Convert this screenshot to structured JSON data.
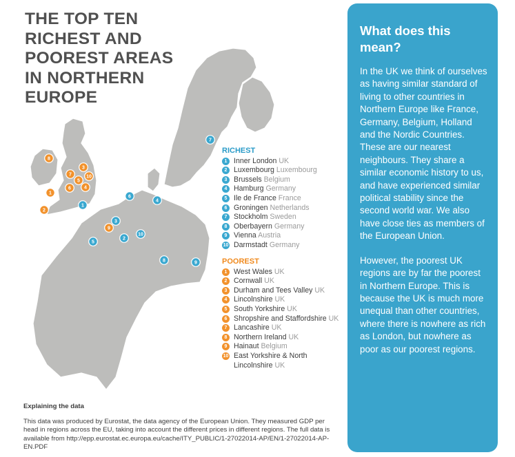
{
  "title": "THE TOP TEN RICHEST AND POOREST AREAS IN NORTHERN EUROPE",
  "legend": {
    "richest_heading": "RICHEST",
    "poorest_heading": "POOREST",
    "richest": [
      {
        "n": "1",
        "region": "Inner London",
        "country": "UK"
      },
      {
        "n": "2",
        "region": "Luxembourg",
        "country": "Luxembourg"
      },
      {
        "n": "3",
        "region": "Brussels",
        "country": "Belgium"
      },
      {
        "n": "4",
        "region": "Hamburg",
        "country": "Germany"
      },
      {
        "n": "5",
        "region": "Ile de France",
        "country": "France"
      },
      {
        "n": "6",
        "region": "Groningen",
        "country": "Netherlands"
      },
      {
        "n": "7",
        "region": "Stockholm",
        "country": "Sweden"
      },
      {
        "n": "8",
        "region": "Oberbayern",
        "country": "Germany"
      },
      {
        "n": "9",
        "region": "Vienna",
        "country": "Austria"
      },
      {
        "n": "10",
        "region": "Darmstadt",
        "country": "Germany"
      }
    ],
    "poorest": [
      {
        "n": "1",
        "region": "West Wales",
        "country": "UK"
      },
      {
        "n": "2",
        "region": "Cornwall",
        "country": "UK"
      },
      {
        "n": "3",
        "region": "Durham and Tees Valley",
        "country": "UK"
      },
      {
        "n": "4",
        "region": "Lincolnshire",
        "country": "UK"
      },
      {
        "n": "5",
        "region": "South Yorkshire",
        "country": "UK"
      },
      {
        "n": "6",
        "region": "Shropshire and Staffordshire",
        "country": "UK"
      },
      {
        "n": "7",
        "region": "Lancashire",
        "country": "UK"
      },
      {
        "n": "8",
        "region": "Northern Ireland",
        "country": "UK"
      },
      {
        "n": "9",
        "region": "Hainaut",
        "country": "Belgium"
      },
      {
        "n": "10",
        "region": "East Yorkshire & North Lincolnshire",
        "country": "UK"
      }
    ]
  },
  "map_markers": {
    "richest": [
      "1",
      "2",
      "3",
      "4",
      "5",
      "6",
      "7",
      "8",
      "9",
      "10"
    ],
    "poorest": [
      "1",
      "2",
      "3",
      "4",
      "5",
      "6",
      "7",
      "8",
      "9",
      "10"
    ],
    "colors": {
      "richest": "#3aa8d0",
      "poorest": "#f2922c",
      "land": "#bdbdbb"
    }
  },
  "explaining": {
    "heading": "Explaining the data",
    "body": "This data was produced by Eurostat, the data agency of the European Union. They measured GDP per head in regions across the EU, taking into account the different prices in different regions. The full data is available from http://epp.eurostat.ec.europa.eu/cache/ITY_PUBLIC/1-27022014-AP/EN/1-27022014-AP-EN.PDF"
  },
  "panel": {
    "heading": "What does this mean?",
    "paragraphs": [
      "In the UK we think of ourselves as having similar standard of living to other countries in Northern Europe like France, Germany, Belgium, Holland and the Nordic Countries. These are our nearest neighbours. They share a similar economic history to us, and have experienced similar political stability since the second world war. We also have close ties as members of the European Union.",
      "However, the poorest UK regions are by far the poorest in Northern Europe. This is because the UK is much more unequal than other countries, where there is nowhere as rich as London, but nowhere as poor as our poorest regions."
    ]
  }
}
